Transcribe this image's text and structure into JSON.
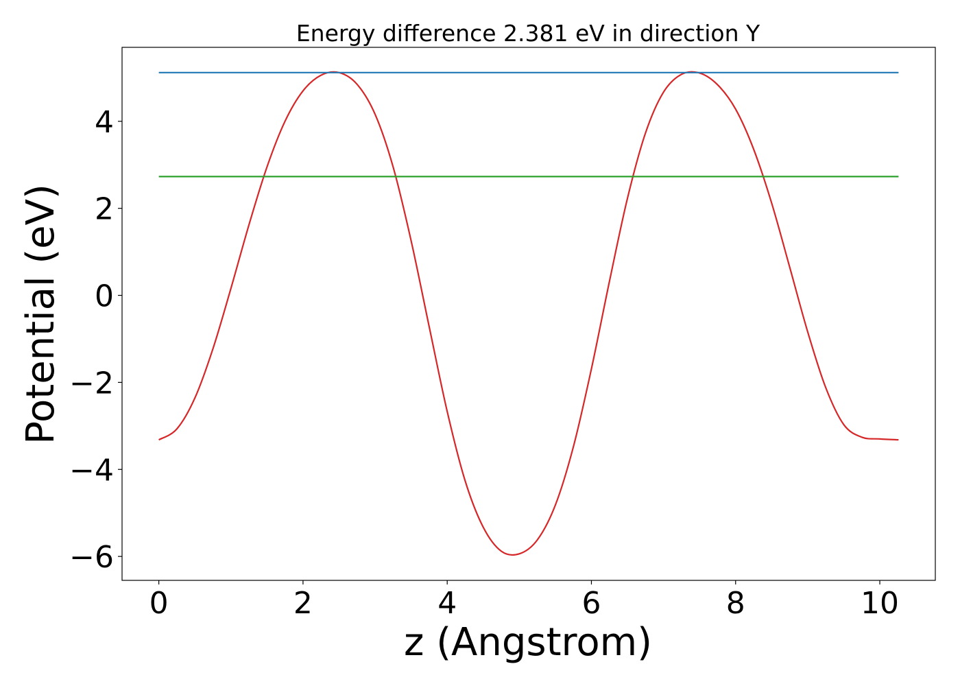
{
  "chart_data": {
    "type": "line",
    "title": "Energy difference 2.381 eV in direction Y",
    "xlabel": "z (Angstrom)",
    "ylabel": "Potential (eV)",
    "xlim": [
      -0.51,
      10.77
    ],
    "ylim": [
      -6.55,
      5.7
    ],
    "grid": false,
    "legend": "none",
    "x_ticks": [
      0,
      2,
      4,
      6,
      8,
      10
    ],
    "y_ticks": [
      -6,
      -4,
      -2,
      0,
      2,
      4
    ],
    "x_tick_labels": [
      "0",
      "2",
      "4",
      "6",
      "8",
      "10"
    ],
    "y_tick_labels": [
      "−6",
      "−4",
      "−2",
      "0",
      "2",
      "4"
    ],
    "series": [
      {
        "color": "#d62728",
        "x": [
          0.0,
          0.25,
          0.5,
          0.75,
          1.0,
          1.25,
          1.5,
          1.75,
          2.0,
          2.25,
          2.5,
          2.75,
          3.0,
          3.25,
          3.5,
          3.75,
          4.0,
          4.25,
          4.5,
          4.75,
          5.0,
          5.25,
          5.5,
          5.75,
          6.0,
          6.25,
          6.5,
          6.75,
          7.0,
          7.25,
          7.5,
          7.75,
          8.0,
          8.25,
          8.5,
          8.75,
          9.0,
          9.25,
          9.5,
          9.75,
          10.0,
          10.26
        ],
        "y": [
          -3.32,
          -3.07,
          -2.36,
          -1.23,
          0.16,
          1.62,
          2.95,
          4.0,
          4.7,
          5.06,
          5.12,
          4.85,
          4.16,
          2.95,
          1.25,
          -0.72,
          -2.67,
          -4.27,
          -5.33,
          -5.88,
          -5.94,
          -5.62,
          -4.82,
          -3.48,
          -1.69,
          0.32,
          2.23,
          3.73,
          4.67,
          5.08,
          5.11,
          4.84,
          4.28,
          3.36,
          2.12,
          0.65,
          -0.84,
          -2.12,
          -2.97,
          -3.26,
          -3.3,
          -3.32
        ]
      },
      {
        "color": "#1f77b4",
        "x": [
          0.0,
          10.26
        ],
        "y": [
          5.12,
          5.12
        ]
      },
      {
        "color": "#2ca02c",
        "x": [
          0.0,
          10.26
        ],
        "y": [
          2.73,
          2.73
        ]
      }
    ]
  }
}
